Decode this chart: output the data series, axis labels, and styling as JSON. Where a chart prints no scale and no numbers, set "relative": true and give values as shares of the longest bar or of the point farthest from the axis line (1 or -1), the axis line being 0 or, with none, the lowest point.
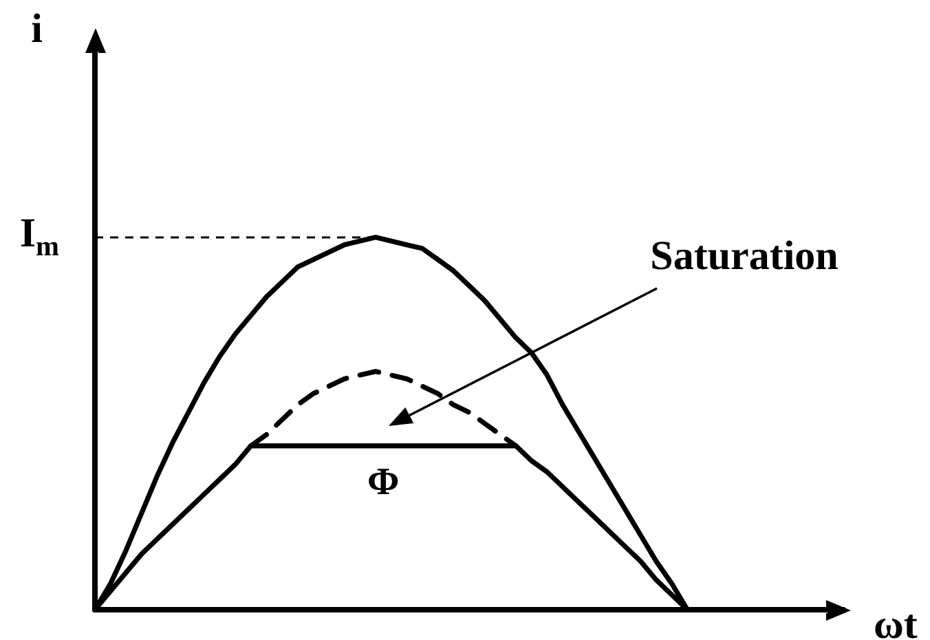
{
  "chart_data": {
    "type": "line",
    "relative": true,
    "xlabel": "ωt",
    "ylabel": "i",
    "marker": "none",
    "line_style": "solid",
    "categories": [
      null,
      null,
      null,
      null,
      null,
      null,
      null,
      null,
      null,
      null,
      null,
      null,
      null,
      null,
      null,
      null,
      null,
      null,
      null,
      null,
      null,
      null,
      null,
      null,
      null,
      null,
      null,
      null,
      null,
      null,
      null,
      null,
      null,
      null,
      null,
      null,
      null,
      null,
      null,
      null,
      null,
      null,
      null,
      null,
      null,
      null,
      null,
      null,
      null
    ],
    "series": [
      {
        "color": "#000000",
        "values": [
          0,
          0.07,
          0.16,
          0.26,
          0.36,
          0.45,
          0.53,
          0.61,
          0.68,
          0.74,
          0.79,
          0.84,
          0.88,
          0.92,
          0.94,
          0.96,
          0.98,
          0.99,
          1,
          0.99,
          0.98,
          0.97,
          0.94,
          0.91,
          0.87,
          0.83,
          0.78,
          0.73,
          0.69,
          0.63,
          0.55,
          0.48,
          0.41,
          0.34,
          0.27,
          0.2,
          0.13,
          0.07,
          0,
          null,
          null,
          null,
          null,
          null,
          null,
          null,
          null,
          null,
          null
        ]
      },
      {
        "name": "Φ",
        "color": "#000000",
        "values": [
          0,
          0.05,
          0.1,
          0.15,
          0.19,
          0.23,
          0.27,
          0.31,
          0.35,
          0.39,
          0.44,
          0.44,
          0.44,
          0.44,
          0.44,
          0.44,
          0.44,
          0.44,
          0.44,
          0.44,
          0.44,
          0.44,
          0.44,
          0.44,
          0.44,
          0.44,
          0.44,
          0.44,
          0.4,
          0.37,
          0.33,
          0.29,
          0.25,
          0.21,
          0.17,
          0.13,
          0.08,
          0.04,
          0,
          null,
          null,
          null,
          null,
          null,
          null,
          null,
          null,
          null,
          null
        ]
      },
      {
        "color": "#000000",
        "line_style": "dashed",
        "values": [
          null,
          null,
          null,
          null,
          null,
          null,
          null,
          null,
          null,
          null,
          0.44,
          0.47,
          0.51,
          0.55,
          0.58,
          0.6,
          0.62,
          0.63,
          0.64,
          0.63,
          0.62,
          0.6,
          0.58,
          0.55,
          0.53,
          0.5,
          0.47,
          0.44,
          null,
          null,
          null,
          null,
          null,
          null,
          null,
          null,
          null,
          null,
          null,
          null,
          null,
          null,
          null,
          null,
          null,
          null,
          null,
          null,
          null
        ]
      }
    ],
    "ref_lines": [
      {
        "axis": "y",
        "value": 1,
        "label": "I$_{m}$",
        "line_style": "dashed",
        "color": "#000000"
      }
    ],
    "annotations": [
      "Saturation"
    ]
  }
}
